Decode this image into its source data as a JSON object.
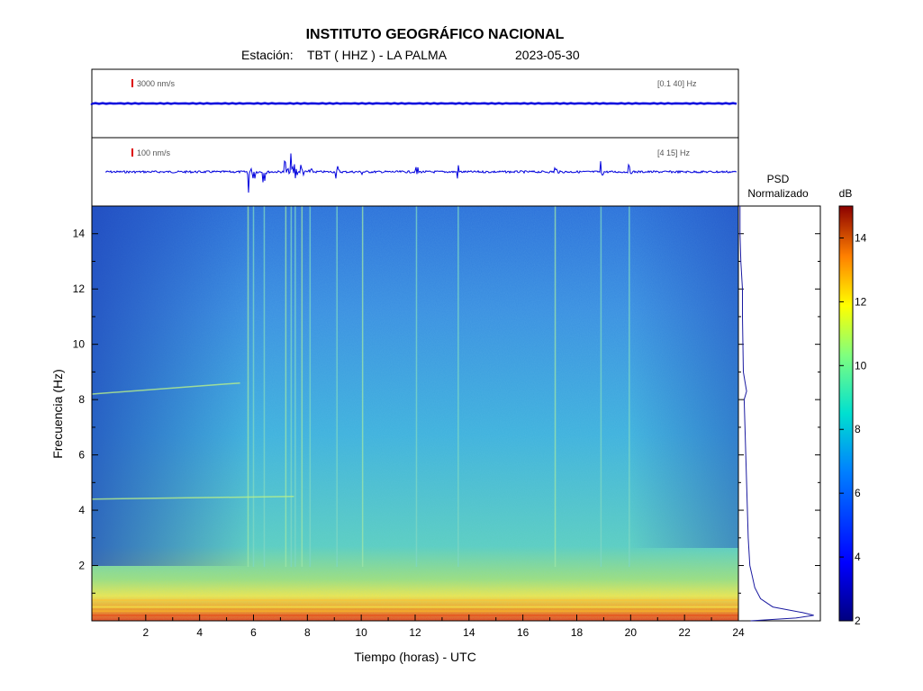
{
  "header": {
    "institution": "INSTITUTO GEOGRÁFICO NACIONAL",
    "station_label": "Estación:",
    "station": "TBT ( HHZ ) - LA PALMA",
    "date": "2023-05-30"
  },
  "traces": [
    {
      "scale_label": "3000 nm/s",
      "band_label": "[0.1 40] Hz"
    },
    {
      "scale_label": "100 nm/s",
      "band_label": "[4 15] Hz"
    }
  ],
  "psd": {
    "title_line1": "PSD",
    "title_line2": "Normalizado"
  },
  "colorbar": {
    "unit": "dB",
    "range": [
      2,
      15
    ],
    "ticks": [
      2,
      4,
      6,
      8,
      10,
      12,
      14
    ]
  },
  "colors": {
    "trace": "#0000dd",
    "scale_marker": "#dd0000",
    "psd_line": "#1a1aa0"
  },
  "chart_data": {
    "type": "heatmap",
    "xlabel": "Tiempo (horas) - UTC",
    "ylabel": "Frecuencia  (Hz)",
    "xlim": [
      0,
      24
    ],
    "ylim": [
      0,
      15
    ],
    "xticks": [
      2,
      4,
      6,
      8,
      10,
      12,
      14,
      16,
      18,
      20,
      22,
      24
    ],
    "yticks": [
      2,
      4,
      6,
      8,
      10,
      12,
      14
    ],
    "vertical_events_hours": [
      5.8,
      6.0,
      6.4,
      7.2,
      7.4,
      7.55,
      7.8,
      8.1,
      9.1,
      10.05,
      12.05,
      13.6,
      17.2,
      18.9,
      19.95
    ],
    "tremor_bands": [
      {
        "f_start_hz": 4.4,
        "f_end_hz": 4.5,
        "t_start_h": 0,
        "t_end_h": 7.5
      },
      {
        "f_start_hz": 8.2,
        "f_end_hz": 8.6,
        "t_start_h": 0,
        "t_end_h": 5.5
      }
    ],
    "psd_profile": [
      [
        0.0,
        0.15
      ],
      [
        0.1,
        0.7
      ],
      [
        0.2,
        0.92
      ],
      [
        0.3,
        0.78
      ],
      [
        0.5,
        0.42
      ],
      [
        0.8,
        0.27
      ],
      [
        1.2,
        0.2
      ],
      [
        1.6,
        0.17
      ],
      [
        2.0,
        0.14
      ],
      [
        3.0,
        0.12
      ],
      [
        4.0,
        0.11
      ],
      [
        5.0,
        0.1
      ],
      [
        6.0,
        0.09
      ],
      [
        7.0,
        0.08
      ],
      [
        8.0,
        0.07
      ],
      [
        8.3,
        0.1
      ],
      [
        9.0,
        0.06
      ],
      [
        10.0,
        0.055
      ],
      [
        11.0,
        0.05
      ],
      [
        12.0,
        0.05
      ],
      [
        13.0,
        0.03
      ],
      [
        14.0,
        0.02
      ],
      [
        15.0,
        0.02
      ]
    ]
  }
}
